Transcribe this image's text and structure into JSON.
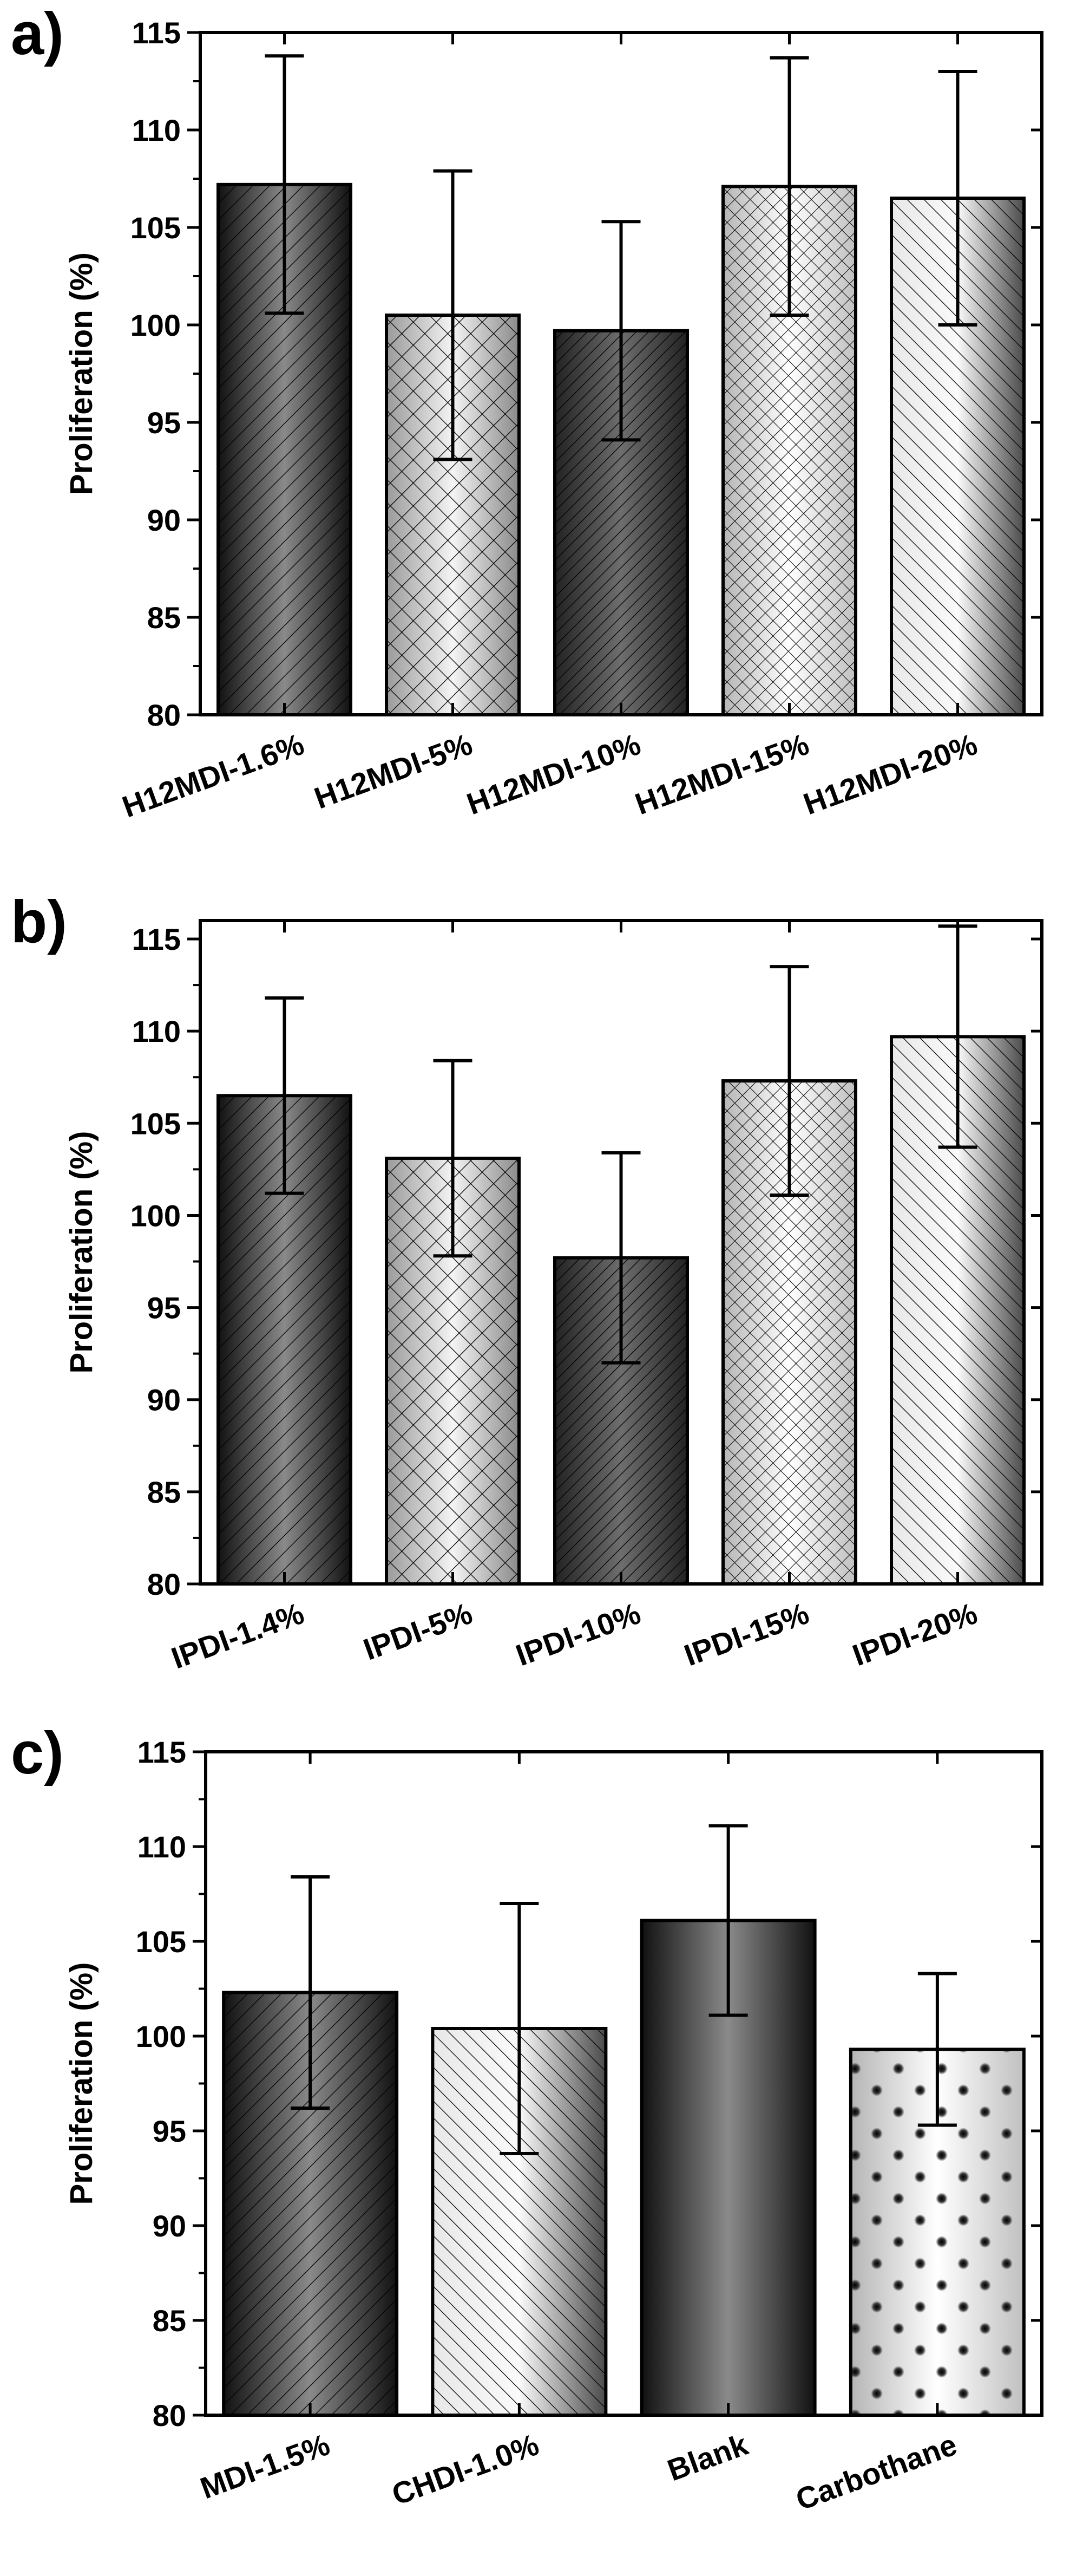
{
  "figure": {
    "background": "#ffffff"
  },
  "chart_data": [
    {
      "type": "bar",
      "panel": "a)",
      "title": "",
      "xlabel": "",
      "ylabel": "Proliferation (%)",
      "ylim": [
        80,
        115
      ],
      "yticks": [
        "80",
        "85",
        "90",
        "95",
        "100",
        "105",
        "110",
        "115"
      ],
      "grid": false,
      "categories": [
        "H12MDI-1.6%",
        "H12MDI-5%",
        "H12MDI-10%",
        "H12MDI-15%",
        "H12MDI-20%"
      ],
      "values": [
        107.2,
        100.5,
        99.7,
        107.1,
        106.5
      ],
      "errors": [
        6.6,
        7.4,
        5.6,
        6.6,
        6.5
      ],
      "patterns": [
        "diag",
        "cross-dark",
        "diag-dense",
        "cross-light",
        "diag-light"
      ],
      "bar_shades": [
        "#1e1e1e",
        "#a8a8a8",
        "#2a2a2a",
        "#c4c4c4",
        "#777777"
      ]
    },
    {
      "type": "bar",
      "panel": "b)",
      "title": "",
      "xlabel": "",
      "ylabel": "Proliferation (%)",
      "ylim": [
        80,
        116
      ],
      "yticks": [
        "80",
        "85",
        "90",
        "95",
        "100",
        "105",
        "110",
        "115"
      ],
      "grid": false,
      "categories": [
        "IPDI-1.4%",
        "IPDI-5%",
        "IPDI-10%",
        "IPDI-15%",
        "IPDI-20%"
      ],
      "values": [
        106.5,
        103.1,
        97.7,
        107.3,
        109.7
      ],
      "errors": [
        5.3,
        5.3,
        5.7,
        6.2,
        6.0
      ],
      "patterns": [
        "diag",
        "cross-dark",
        "diag-dense",
        "cross-light",
        "diag-light"
      ],
      "bar_shades": [
        "#1e1e1e",
        "#a8a8a8",
        "#2a2a2a",
        "#c4c4c4",
        "#777777"
      ]
    },
    {
      "type": "bar",
      "panel": "c)",
      "title": "",
      "xlabel": "",
      "ylabel": "Proliferation (%)",
      "ylim": [
        80,
        115
      ],
      "yticks": [
        "80",
        "85",
        "90",
        "95",
        "100",
        "105",
        "110",
        "115"
      ],
      "grid": false,
      "categories": [
        "MDI-1.5%",
        "CHDI-1.0%",
        "Blank",
        "Carbothane"
      ],
      "values": [
        102.3,
        100.4,
        106.1,
        99.3
      ],
      "errors": [
        6.1,
        6.6,
        5.0,
        4.0
      ],
      "patterns": [
        "diag",
        "diag-light",
        "none",
        "dots"
      ],
      "bar_shades": [
        "#1e1e1e",
        "#b0b0b0",
        "#3a3a3a",
        "#d0d0d0"
      ]
    }
  ]
}
